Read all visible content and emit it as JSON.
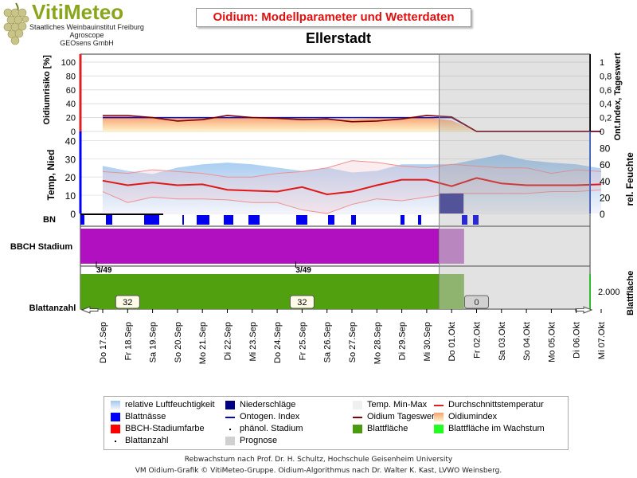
{
  "header": {
    "brand": "VitiMeteo",
    "sub1": "Staatliches Weinbauinstitut Freiburg",
    "sub2": "Agroscope",
    "sub3": "GEOsens GmbH",
    "title": "Oidium: Modellparameter und Wetterdaten",
    "station": "Ellerstadt"
  },
  "footer": {
    "line1": "Rebwachstum nach Prof. Dr. H. Schultz, Hochschule Geisenheim University",
    "line2": "VM Oidium-Grafik © VitiMeteo-Gruppe. Oidium-Algorithmus nach Dr. Walter K. Kast, LVWO Weinsberg."
  },
  "legend": [
    {
      "label": "relative Luftfeuchtigkeit",
      "color": "#a8cdf0"
    },
    {
      "label": "Niederschläge",
      "color": "#000080"
    },
    {
      "label": "Temp. Min-Max",
      "color": "#f0f0f0"
    },
    {
      "label": "Durchschnittstemperatur",
      "color": "#e02020"
    },
    {
      "label": "Blattnässe",
      "color": "#0000ff"
    },
    {
      "label": "Ontogen. Index",
      "color": "#0000cc"
    },
    {
      "label": "Oidium Tageswert",
      "color": "#800000"
    },
    {
      "label": "Oidiumindex",
      "color": "#f8b080"
    },
    {
      "label": "BBCH-Stadiumfarbe",
      "color": "#ff0000"
    },
    {
      "label": "phänol. Stadium",
      "color": "#000000"
    },
    {
      "label": "Blattfläche",
      "color": "#4a9a10"
    },
    {
      "label": "Blattfläche im Wachstum",
      "color": "#20ff20"
    },
    {
      "label": "Blattanzahl",
      "color": "#000000"
    },
    {
      "label": "Prognose",
      "color": "#d0d0d0"
    }
  ],
  "chart_data": {
    "dates": [
      "Do 17.Sep",
      "Fr 18.Sep",
      "Sa 19.Sep",
      "So 20.Sep",
      "Mo 21.Sep",
      "Di 22.Sep",
      "Mi 23.Sep",
      "Do 24.Sep",
      "Fr 25.Sep",
      "Sa 26.Sep",
      "So 27.Sep",
      "Mo 28.Sep",
      "Di 29.Sep",
      "Mi 30.Sep",
      "Do 01.Okt",
      "Fr 02.Okt",
      "Sa 03.Okt",
      "So 04.Okt",
      "Mo 05.Okt",
      "Di 06.Okt",
      "Mi 07.Okt"
    ],
    "forecast_from": "Do 01.Okt",
    "panel1": {
      "type": "area",
      "ylabel_left": "Oidiumrisiko [%]",
      "ylabel_right": "Ont.Index, Tageswert",
      "left_ticks": [
        0,
        20,
        40,
        60,
        80,
        100
      ],
      "right_ticks": [
        "0",
        "0,2",
        "0,4",
        "0,6",
        "0,8",
        "1"
      ],
      "oidiumindex": [
        22,
        22,
        20,
        19,
        20,
        20,
        19,
        19,
        19,
        18,
        18,
        19,
        19,
        20,
        16,
        0,
        0,
        0,
        0,
        0,
        0
      ],
      "tageswert": [
        23,
        23,
        20,
        15,
        17,
        23,
        20,
        19,
        17,
        18,
        14,
        15,
        18,
        23,
        21,
        0,
        0,
        0,
        0,
        0,
        0
      ],
      "ontogen_index": [
        20,
        20,
        20,
        20,
        20,
        20,
        20,
        20,
        20,
        20,
        20,
        20,
        20,
        20,
        20,
        0,
        0,
        0,
        0,
        0,
        0
      ]
    },
    "panel2": {
      "type": "line",
      "ylabel_left": "Temp, Nied",
      "ylabel_right": "rel. Feuchte",
      "left_ticks": [
        0,
        10,
        20,
        30,
        40
      ],
      "right_ticks": [
        0,
        20,
        40,
        60,
        80
      ],
      "temp_avg": [
        18,
        15.5,
        17,
        15.5,
        16,
        13,
        12.5,
        12,
        14.5,
        10.5,
        12,
        15.5,
        18.5,
        18.5,
        15,
        19.5,
        16.5,
        15.5,
        15.5,
        15.5,
        16
      ],
      "temp_min": [
        12,
        6,
        9,
        8,
        8,
        7.5,
        6,
        6,
        2,
        0,
        5,
        8,
        7,
        9,
        11,
        11,
        11,
        11,
        12,
        12,
        13
      ],
      "temp_max": [
        23,
        22,
        24,
        23,
        22,
        20,
        20,
        22,
        23,
        25,
        29,
        28,
        26,
        25,
        27,
        26,
        25,
        25,
        22,
        24,
        23
      ],
      "humidity": [
        58,
        52,
        48,
        56,
        60,
        62,
        60,
        56,
        52,
        56,
        50,
        52,
        60,
        60,
        60,
        66,
        72,
        65,
        62,
        60,
        55
      ],
      "precip": [
        0,
        0,
        0,
        0,
        0,
        0,
        0,
        0,
        0,
        0,
        0,
        0,
        0,
        0,
        11,
        0,
        0,
        0,
        0,
        0,
        0
      ]
    },
    "bn_label": "BN",
    "bbch_label": "BBCH Stadium",
    "bbch_marks": [
      {
        "at": "Do 17.Sep",
        "label": "3/49"
      },
      {
        "at": "Fr 25.Sep",
        "label": "3/49"
      }
    ],
    "blatt_label": "Blattanzahl",
    "blatt_right_label": "Blattfläche",
    "blatt_ticks": [
      "2.000"
    ],
    "blatt_counts": [
      {
        "at": "Fr 18.Sep",
        "label": "32"
      },
      {
        "at": "Fr 25.Sep",
        "label": "32"
      },
      {
        "at": "Fr 02.Okt",
        "label": "0"
      }
    ]
  }
}
